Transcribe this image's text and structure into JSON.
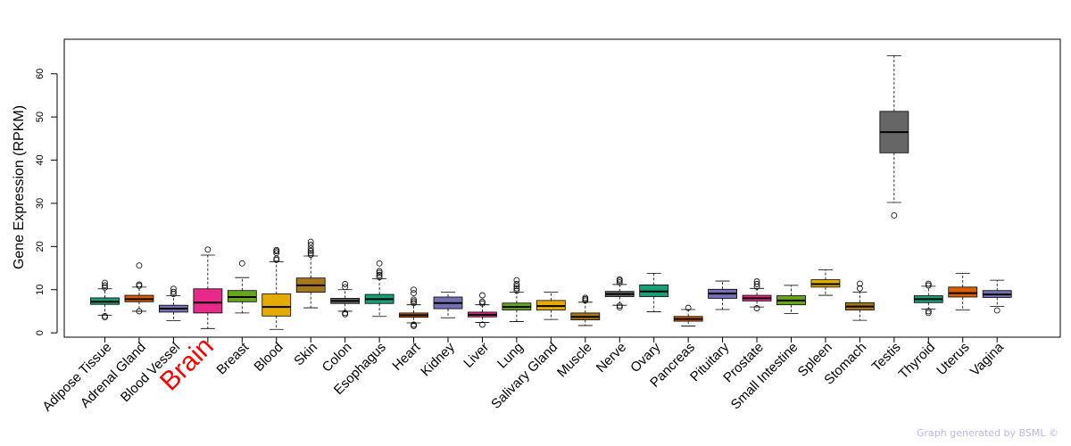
{
  "chart_data": {
    "type": "boxplot",
    "ylabel": "Gene Expression (RPKM)",
    "ylim": [
      -1,
      68
    ],
    "yticks": [
      0,
      10,
      20,
      30,
      40,
      50,
      60
    ],
    "highlight_category": "Brain",
    "highlight_color": "#ff0000",
    "categories": [
      {
        "name": "Adipose Tissue",
        "color": "#1b9e77",
        "lw": 4.1,
        "q1": 6.6,
        "median": 7.2,
        "q3": 8.1,
        "uw": 10.2,
        "outliers": [
          3.6,
          3.9,
          10.5,
          11.0,
          11.6
        ]
      },
      {
        "name": "Adrenal Gland",
        "color": "#d95f02",
        "lw": 5.0,
        "q1": 7.2,
        "median": 7.8,
        "q3": 8.7,
        "uw": 10.6,
        "outliers": [
          5.0,
          10.9,
          11.2,
          15.6
        ]
      },
      {
        "name": "Blood Vessel",
        "color": "#7570b3",
        "lw": 2.8,
        "q1": 4.8,
        "median": 5.6,
        "q3": 6.4,
        "uw": 8.6,
        "outliers": [
          9.0,
          9.5,
          10.2
        ]
      },
      {
        "name": "Brain",
        "color": "#e7298a",
        "lw": 1.0,
        "q1": 4.6,
        "median": 7.0,
        "q3": 10.2,
        "uw": 18.0,
        "outliers": [
          19.3
        ]
      },
      {
        "name": "Breast",
        "color": "#66a61e",
        "lw": 4.6,
        "q1": 7.2,
        "median": 8.3,
        "q3": 9.8,
        "uw": 12.8,
        "outliers": [
          16.1
        ]
      },
      {
        "name": "Blood",
        "color": "#e6ab02",
        "lw": 0.8,
        "q1": 3.9,
        "median": 6.0,
        "q3": 9.0,
        "uw": 16.5,
        "outliers": [
          16.9,
          17.2,
          18.5,
          18.9,
          19.2
        ]
      },
      {
        "name": "Skin",
        "color": "#a6761d",
        "lw": 5.8,
        "q1": 9.4,
        "median": 11.0,
        "q3": 12.7,
        "uw": 17.8,
        "outliers": [
          18.1,
          18.5,
          19.0,
          19.6,
          20.4,
          21.1
        ]
      },
      {
        "name": "Colon",
        "color": "#666666",
        "lw": 5.0,
        "q1": 6.8,
        "median": 7.4,
        "q3": 8.0,
        "uw": 10.0,
        "outliers": [
          4.3,
          4.6,
          10.6,
          11.3
        ]
      },
      {
        "name": "Esophagus",
        "color": "#1b9e77",
        "lw": 3.8,
        "q1": 6.8,
        "median": 7.8,
        "q3": 8.9,
        "uw": 12.5,
        "outliers": [
          12.9,
          13.4,
          13.9,
          14.3,
          16.1
        ]
      },
      {
        "name": "Heart",
        "color": "#d95f02",
        "lw": 2.3,
        "q1": 3.6,
        "median": 4.1,
        "q3": 4.6,
        "uw": 6.5,
        "outliers": [
          1.6,
          1.9,
          6.9,
          7.3,
          7.7,
          9.2,
          10.0
        ]
      },
      {
        "name": "Kidney",
        "color": "#7570b3",
        "lw": 3.5,
        "q1": 5.6,
        "median": 6.9,
        "q3": 8.3,
        "uw": 9.4,
        "outliers": []
      },
      {
        "name": "Liver",
        "color": "#e7298a",
        "lw": 2.4,
        "q1": 3.7,
        "median": 4.2,
        "q3": 4.8,
        "uw": 6.5,
        "outliers": [
          1.9,
          6.8,
          7.2,
          8.7
        ]
      },
      {
        "name": "Lung",
        "color": "#66a61e",
        "lw": 2.6,
        "q1": 5.3,
        "median": 6.0,
        "q3": 6.9,
        "uw": 9.4,
        "outliers": [
          9.8,
          10.3,
          10.8,
          11.3,
          12.2
        ]
      },
      {
        "name": "Salivary Gland",
        "color": "#e6ab02",
        "lw": 3.1,
        "q1": 5.3,
        "median": 6.2,
        "q3": 7.5,
        "uw": 9.4,
        "outliers": []
      },
      {
        "name": "Muscle",
        "color": "#a6761d",
        "lw": 1.7,
        "q1": 3.0,
        "median": 3.7,
        "q3": 4.6,
        "uw": 7.1,
        "outliers": [
          7.5,
          7.8,
          8.1
        ]
      },
      {
        "name": "Nerve",
        "color": "#666666",
        "lw": 6.4,
        "q1": 8.4,
        "median": 9.0,
        "q3": 9.6,
        "uw": 11.2,
        "outliers": [
          5.9,
          6.3,
          11.7,
          12.1,
          12.4
        ]
      },
      {
        "name": "Ovary",
        "color": "#1b9e77",
        "lw": 4.9,
        "q1": 8.4,
        "median": 9.6,
        "q3": 11.1,
        "uw": 13.8,
        "outliers": []
      },
      {
        "name": "Pancreas",
        "color": "#d95f02",
        "lw": 1.6,
        "q1": 2.7,
        "median": 3.2,
        "q3": 3.8,
        "uw": 5.4,
        "outliers": [
          5.8
        ]
      },
      {
        "name": "Pituitary",
        "color": "#7570b3",
        "lw": 5.4,
        "q1": 8.0,
        "median": 9.1,
        "q3": 10.1,
        "uw": 12.0,
        "outliers": []
      },
      {
        "name": "Prostate",
        "color": "#e7298a",
        "lw": 6.0,
        "q1": 7.4,
        "median": 8.0,
        "q3": 8.7,
        "uw": 10.3,
        "outliers": [
          5.7,
          10.7,
          11.3,
          11.9
        ]
      },
      {
        "name": "Small Intestine",
        "color": "#66a61e",
        "lw": 4.5,
        "q1": 6.5,
        "median": 7.5,
        "q3": 8.6,
        "uw": 11.0,
        "outliers": []
      },
      {
        "name": "Spleen",
        "color": "#e6ab02",
        "lw": 8.7,
        "q1": 10.6,
        "median": 11.3,
        "q3": 12.3,
        "uw": 14.6,
        "outliers": []
      },
      {
        "name": "Stomach",
        "color": "#a6761d",
        "lw": 2.9,
        "q1": 5.3,
        "median": 6.1,
        "q3": 7.0,
        "uw": 9.4,
        "outliers": [
          10.3,
          11.4
        ]
      },
      {
        "name": "Testis",
        "color": "#666666",
        "lw": 30.2,
        "q1": 41.7,
        "median": 46.5,
        "q3": 51.3,
        "uw": 64.2,
        "outliers": [
          27.2
        ]
      },
      {
        "name": "Thyroid",
        "color": "#1b9e77",
        "lw": 5.5,
        "q1": 7.0,
        "median": 7.8,
        "q3": 8.6,
        "uw": 10.8,
        "outliers": [
          4.6,
          5.0,
          11.0,
          11.4
        ]
      },
      {
        "name": "Uterus",
        "color": "#d95f02",
        "lw": 5.3,
        "q1": 8.3,
        "median": 9.2,
        "q3": 10.6,
        "uw": 13.8,
        "outliers": []
      },
      {
        "name": "Vagina",
        "color": "#7570b3",
        "lw": 6.1,
        "q1": 8.2,
        "median": 8.9,
        "q3": 9.8,
        "uw": 12.2,
        "outliers": [
          5.2
        ]
      }
    ]
  },
  "credit": "Graph generated by BSML ©"
}
